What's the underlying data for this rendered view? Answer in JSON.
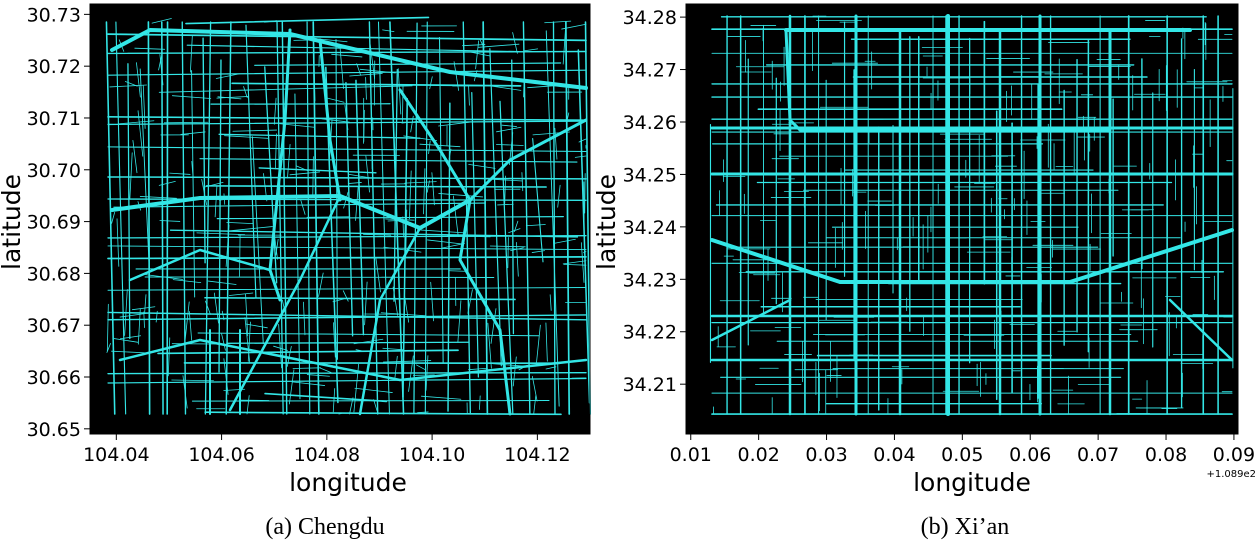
{
  "colors": {
    "road": "#33e6e6",
    "background": "#000000",
    "axis": "#000000"
  },
  "chart_data": [
    {
      "type": "scatter",
      "caption": "(a) Chengdu",
      "xlabel": "longitude",
      "ylabel": "latitude",
      "xlim": [
        104.035,
        104.13
      ],
      "ylim": [
        30.649,
        30.732
      ],
      "xticks": [
        "104.04",
        "104.06",
        "104.08",
        "104.10",
        "104.12"
      ],
      "yticks": [
        "30.65",
        "30.66",
        "30.67",
        "30.68",
        "30.69",
        "30.70",
        "30.71",
        "30.72",
        "30.73"
      ],
      "x_offset_label": "",
      "series": [
        {
          "name": "",
          "note": "road network trajectory points"
        }
      ]
    },
    {
      "type": "scatter",
      "caption": "(b) Xi’an",
      "xlabel": "longitude",
      "ylabel": "latitude",
      "xlim": [
        0.0093,
        0.0906
      ],
      "ylim": [
        34.2005,
        34.2825
      ],
      "xticks": [
        "0.01",
        "0.02",
        "0.03",
        "0.04",
        "0.05",
        "0.06",
        "0.07",
        "0.08",
        "0.09"
      ],
      "yticks": [
        "34.21",
        "34.22",
        "34.23",
        "34.24",
        "34.25",
        "34.26",
        "34.27",
        "34.28"
      ],
      "x_offset_label": "+1.089e2",
      "series": [
        {
          "name": "",
          "note": "road network trajectory points"
        }
      ]
    }
  ]
}
